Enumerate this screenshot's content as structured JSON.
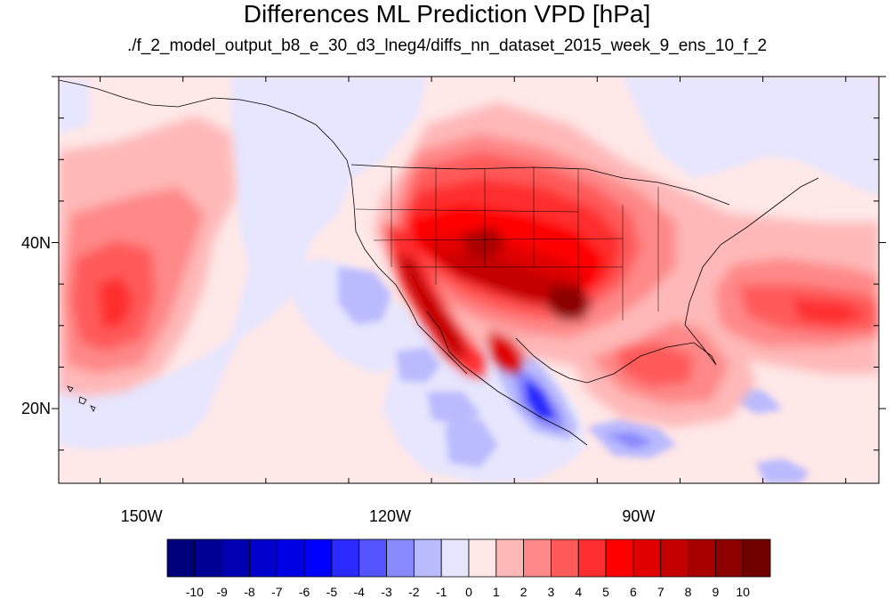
{
  "title": "Differences ML Prediction VPD [hPa]",
  "subtitle": "./f_2_model_output_b8_e_30_d3_lneg4/diffs_nn_dataset_2015_week_9_ens_10_f_2",
  "map": {
    "lon_range": [
      -160,
      -61
    ],
    "lat_range": [
      11,
      60
    ],
    "lat_labels": [
      {
        "value": 40,
        "text": "40N"
      },
      {
        "value": 20,
        "text": "20N"
      }
    ],
    "lon_labels": [
      {
        "value": -150,
        "text": "150W"
      },
      {
        "value": -120,
        "text": "120W"
      },
      {
        "value": -90,
        "text": "90W"
      }
    ]
  },
  "colorbar": {
    "labels": [
      "-10",
      "-9",
      "-8",
      "-7",
      "-6",
      "-5",
      "-4",
      "-3",
      "-2",
      "-1",
      "0",
      "1",
      "2",
      "3",
      "4",
      "5",
      "6",
      "7",
      "8",
      "9",
      "10"
    ],
    "colors": [
      "#00007a",
      "#000095",
      "#0000b0",
      "#0000cc",
      "#0000e4",
      "#0000ff",
      "#2a2aff",
      "#5555ff",
      "#8a8aff",
      "#babaff",
      "#e6e6ff",
      "#ffe8e8",
      "#ffb8b8",
      "#ff8888",
      "#ff5a5a",
      "#ff2e2e",
      "#ff0000",
      "#e00000",
      "#c40000",
      "#a80000",
      "#8c0000",
      "#700000"
    ]
  }
}
